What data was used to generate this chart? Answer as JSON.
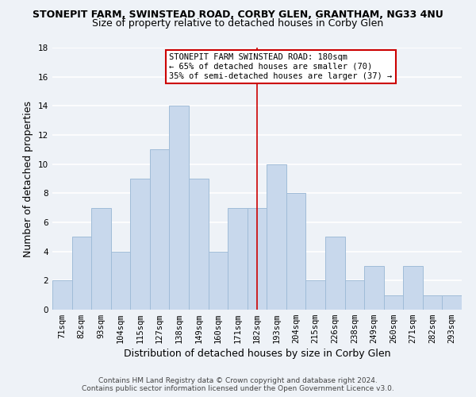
{
  "title": "STONEPIT FARM, SWINSTEAD ROAD, CORBY GLEN, GRANTHAM, NG33 4NU",
  "subtitle": "Size of property relative to detached houses in Corby Glen",
  "xlabel": "Distribution of detached houses by size in Corby Glen",
  "ylabel": "Number of detached properties",
  "bar_labels": [
    "71sqm",
    "82sqm",
    "93sqm",
    "104sqm",
    "115sqm",
    "127sqm",
    "138sqm",
    "149sqm",
    "160sqm",
    "171sqm",
    "182sqm",
    "193sqm",
    "204sqm",
    "215sqm",
    "226sqm",
    "238sqm",
    "249sqm",
    "260sqm",
    "271sqm",
    "282sqm",
    "293sqm"
  ],
  "bar_values": [
    2,
    5,
    7,
    4,
    9,
    11,
    14,
    9,
    4,
    7,
    7,
    10,
    8,
    2,
    5,
    2,
    3,
    1,
    3,
    1,
    1
  ],
  "bar_color": "#c8d8ec",
  "bar_edge_color": "#a0bcd8",
  "vline_x": 10,
  "vline_color": "#cc0000",
  "annotation_title": "STONEPIT FARM SWINSTEAD ROAD: 180sqm",
  "annotation_line1": "← 65% of detached houses are smaller (70)",
  "annotation_line2": "35% of semi-detached houses are larger (37) →",
  "annotation_box_color": "#ffffff",
  "annotation_box_edge_color": "#cc0000",
  "ylim": [
    0,
    18
  ],
  "yticks": [
    0,
    2,
    4,
    6,
    8,
    10,
    12,
    14,
    16,
    18
  ],
  "footer1": "Contains HM Land Registry data © Crown copyright and database right 2024.",
  "footer2": "Contains public sector information licensed under the Open Government Licence v3.0.",
  "background_color": "#eef2f7",
  "grid_color": "#ffffff",
  "title_fontsize": 9,
  "subtitle_fontsize": 9,
  "axis_label_fontsize": 9,
  "tick_fontsize": 7.5,
  "footer_fontsize": 6.5
}
